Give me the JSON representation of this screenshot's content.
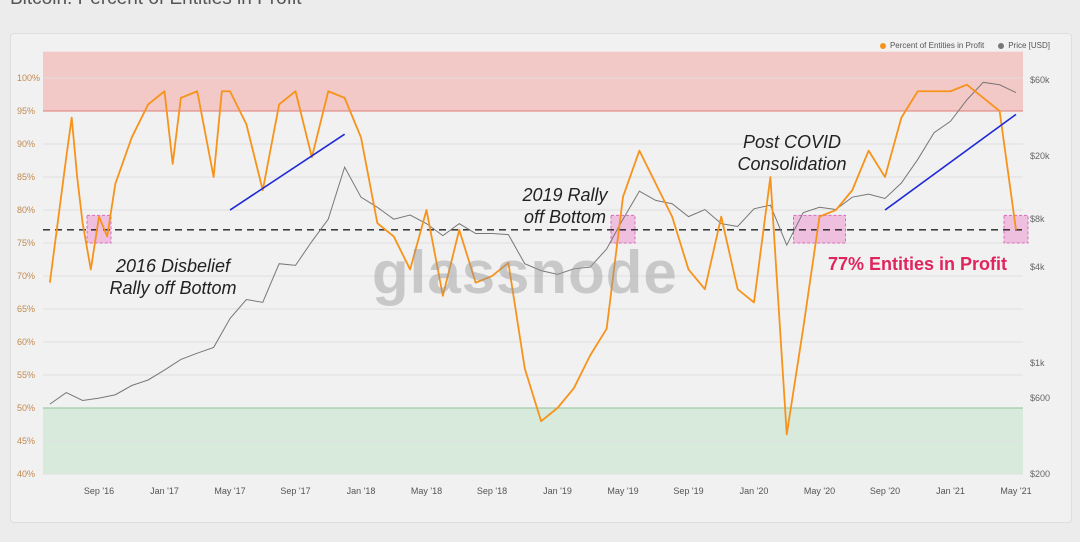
{
  "page_title": "Bitcoin: Percent of Entities in Profit",
  "watermark": "glassnode",
  "legend": [
    {
      "label": "Percent of Entities in Profit",
      "color": "#f7931a"
    },
    {
      "label": "Price [USD]",
      "color": "#777777"
    }
  ],
  "annotations": {
    "a2016": [
      "2016 Disbelief",
      "Rally off Bottom"
    ],
    "a2019": [
      "2019 Rally",
      "off Bottom"
    ],
    "covid": [
      "Post COVID",
      "Consolidation"
    ],
    "current": "77% Entities in Profit"
  },
  "chart_data": {
    "type": "line",
    "title": "Bitcoin: Percent of Entities in Profit",
    "x_ticks": [
      "Sep '16",
      "Jan '17",
      "May '17",
      "Sep '17",
      "Jan '18",
      "May '18",
      "Sep '18",
      "Jan '19",
      "May '19",
      "Sep '19",
      "Jan '20",
      "May '20",
      "Sep '20",
      "Jan '21",
      "May '21"
    ],
    "y_left_ticks": [
      "40%",
      "45%",
      "50%",
      "55%",
      "60%",
      "65%",
      "70%",
      "75%",
      "80%",
      "85%",
      "90%",
      "95%",
      "100%"
    ],
    "y_left_range": [
      40,
      100
    ],
    "y_right_ticks": [
      "$200",
      "$600",
      "$1k",
      "$4k",
      "$8k",
      "$20k",
      "$60k"
    ],
    "y_right_scale": "log",
    "y_right_range": [
      200,
      60000
    ],
    "zones": [
      {
        "name": "high",
        "from": 95,
        "to": 104,
        "color": "#f2c9c6"
      },
      {
        "name": "low",
        "from": 40,
        "to": 50,
        "color": "#d7eadb"
      }
    ],
    "reference_line": 77,
    "grid": true,
    "legend_position": "top-right",
    "series": [
      {
        "name": "Percent of Entities in Profit",
        "axis": "left",
        "color": "#f7931a",
        "points": [
          [
            "Jun '16",
            69
          ],
          [
            "Jul '16",
            88
          ],
          [
            "Jul '16",
            94
          ],
          [
            "Jul '16",
            85
          ],
          [
            "Aug '16",
            78
          ],
          [
            "Aug '16",
            71
          ],
          [
            "Sep '16",
            79
          ],
          [
            "Sep '16",
            76
          ],
          [
            "Oct '16",
            84
          ],
          [
            "Nov '16",
            91
          ],
          [
            "Dec '16",
            96
          ],
          [
            "Jan '17",
            98
          ],
          [
            "Jan '17",
            87
          ],
          [
            "Feb '17",
            97
          ],
          [
            "Mar '17",
            98
          ],
          [
            "Apr '17",
            85
          ],
          [
            "Apr '17",
            98
          ],
          [
            "May '17",
            98
          ],
          [
            "Jun '17",
            93
          ],
          [
            "Jul '17",
            83
          ],
          [
            "Aug '17",
            96
          ],
          [
            "Sep '17",
            98
          ],
          [
            "Oct '17",
            88
          ],
          [
            "Nov '17",
            98
          ],
          [
            "Dec '17",
            97
          ],
          [
            "Jan '18",
            91
          ],
          [
            "Feb '18",
            78
          ],
          [
            "Mar '18",
            76
          ],
          [
            "Apr '18",
            71
          ],
          [
            "May '18",
            80
          ],
          [
            "Jun '18",
            67
          ],
          [
            "Jul '18",
            77
          ],
          [
            "Aug '18",
            69
          ],
          [
            "Sep '18",
            70
          ],
          [
            "Oct '18",
            72
          ],
          [
            "Nov '18",
            56
          ],
          [
            "Dec '18",
            48
          ],
          [
            "Jan '19",
            50
          ],
          [
            "Feb '19",
            53
          ],
          [
            "Mar '19",
            58
          ],
          [
            "Apr '19",
            62
          ],
          [
            "May '19",
            82
          ],
          [
            "Jun '19",
            89
          ],
          [
            "Jul '19",
            84
          ],
          [
            "Aug '19",
            79
          ],
          [
            "Sep '19",
            71
          ],
          [
            "Oct '19",
            68
          ],
          [
            "Nov '19",
            79
          ],
          [
            "Dec '19",
            68
          ],
          [
            "Jan '20",
            66
          ],
          [
            "Feb '20",
            85
          ],
          [
            "Mar '20",
            46
          ],
          [
            "Apr '20",
            62
          ],
          [
            "May '20",
            79
          ],
          [
            "Jun '20",
            80
          ],
          [
            "Jul '20",
            83
          ],
          [
            "Aug '20",
            89
          ],
          [
            "Sep '20",
            85
          ],
          [
            "Oct '20",
            94
          ],
          [
            "Nov '20",
            98
          ],
          [
            "Dec '20",
            98
          ],
          [
            "Jan '21",
            98
          ],
          [
            "Feb '21",
            99
          ],
          [
            "Mar '21",
            97
          ],
          [
            "Apr '21",
            95
          ],
          [
            "May '21",
            77
          ]
        ]
      },
      {
        "name": "Price [USD]",
        "axis": "right",
        "color": "#777777",
        "points": [
          [
            "Jun '16",
            550
          ],
          [
            "Jul '16",
            650
          ],
          [
            "Aug '16",
            580
          ],
          [
            "Sep '16",
            600
          ],
          [
            "Oct '16",
            630
          ],
          [
            "Nov '16",
            720
          ],
          [
            "Dec '16",
            780
          ],
          [
            "Jan '17",
            900
          ],
          [
            "Feb '17",
            1050
          ],
          [
            "Mar '17",
            1150
          ],
          [
            "Apr '17",
            1250
          ],
          [
            "May '17",
            1900
          ],
          [
            "Jun '17",
            2500
          ],
          [
            "Jul '17",
            2400
          ],
          [
            "Aug '17",
            4200
          ],
          [
            "Sep '17",
            4100
          ],
          [
            "Oct '17",
            5800
          ],
          [
            "Nov '17",
            8000
          ],
          [
            "Dec '17",
            17000
          ],
          [
            "Jan '18",
            11000
          ],
          [
            "Feb '18",
            9500
          ],
          [
            "Mar '18",
            8000
          ],
          [
            "Apr '18",
            8500
          ],
          [
            "May '18",
            7500
          ],
          [
            "Jun '18",
            6300
          ],
          [
            "Jul '18",
            7500
          ],
          [
            "Aug '18",
            6500
          ],
          [
            "Sep '18",
            6500
          ],
          [
            "Oct '18",
            6400
          ],
          [
            "Nov '18",
            4200
          ],
          [
            "Dec '18",
            3800
          ],
          [
            "Jan '19",
            3600
          ],
          [
            "Feb '19",
            3900
          ],
          [
            "Mar '19",
            4000
          ],
          [
            "Apr '19",
            5200
          ],
          [
            "May '19",
            8000
          ],
          [
            "Jun '19",
            12000
          ],
          [
            "Jul '19",
            10500
          ],
          [
            "Aug '19",
            10000
          ],
          [
            "Sep '19",
            8300
          ],
          [
            "Oct '19",
            9200
          ],
          [
            "Nov '19",
            7500
          ],
          [
            "Dec '19",
            7200
          ],
          [
            "Jan '20",
            9300
          ],
          [
            "Feb '20",
            9800
          ],
          [
            "Mar '20",
            5500
          ],
          [
            "Apr '20",
            8800
          ],
          [
            "May '20",
            9500
          ],
          [
            "Jun '20",
            9200
          ],
          [
            "Jul '20",
            11000
          ],
          [
            "Aug '20",
            11500
          ],
          [
            "Sep '20",
            10800
          ],
          [
            "Oct '20",
            13500
          ],
          [
            "Nov '20",
            19000
          ],
          [
            "Dec '20",
            28000
          ],
          [
            "Jan '21",
            33000
          ],
          [
            "Feb '21",
            45000
          ],
          [
            "Mar '21",
            58000
          ],
          [
            "Apr '21",
            56000
          ],
          [
            "May '21",
            50000
          ]
        ]
      }
    ],
    "trendlines": [
      {
        "from": [
          "May '17",
          80
        ],
        "to": [
          "Dec '17",
          91.5
        ],
        "color": "#1f2ad6"
      },
      {
        "from": [
          "Sep '20",
          80
        ],
        "to": [
          "May '21",
          94.5
        ],
        "color": "#1f2ad6"
      }
    ],
    "highlight_boxes": [
      "Sep '16",
      "May '19",
      "May '20",
      "May '21"
    ]
  }
}
